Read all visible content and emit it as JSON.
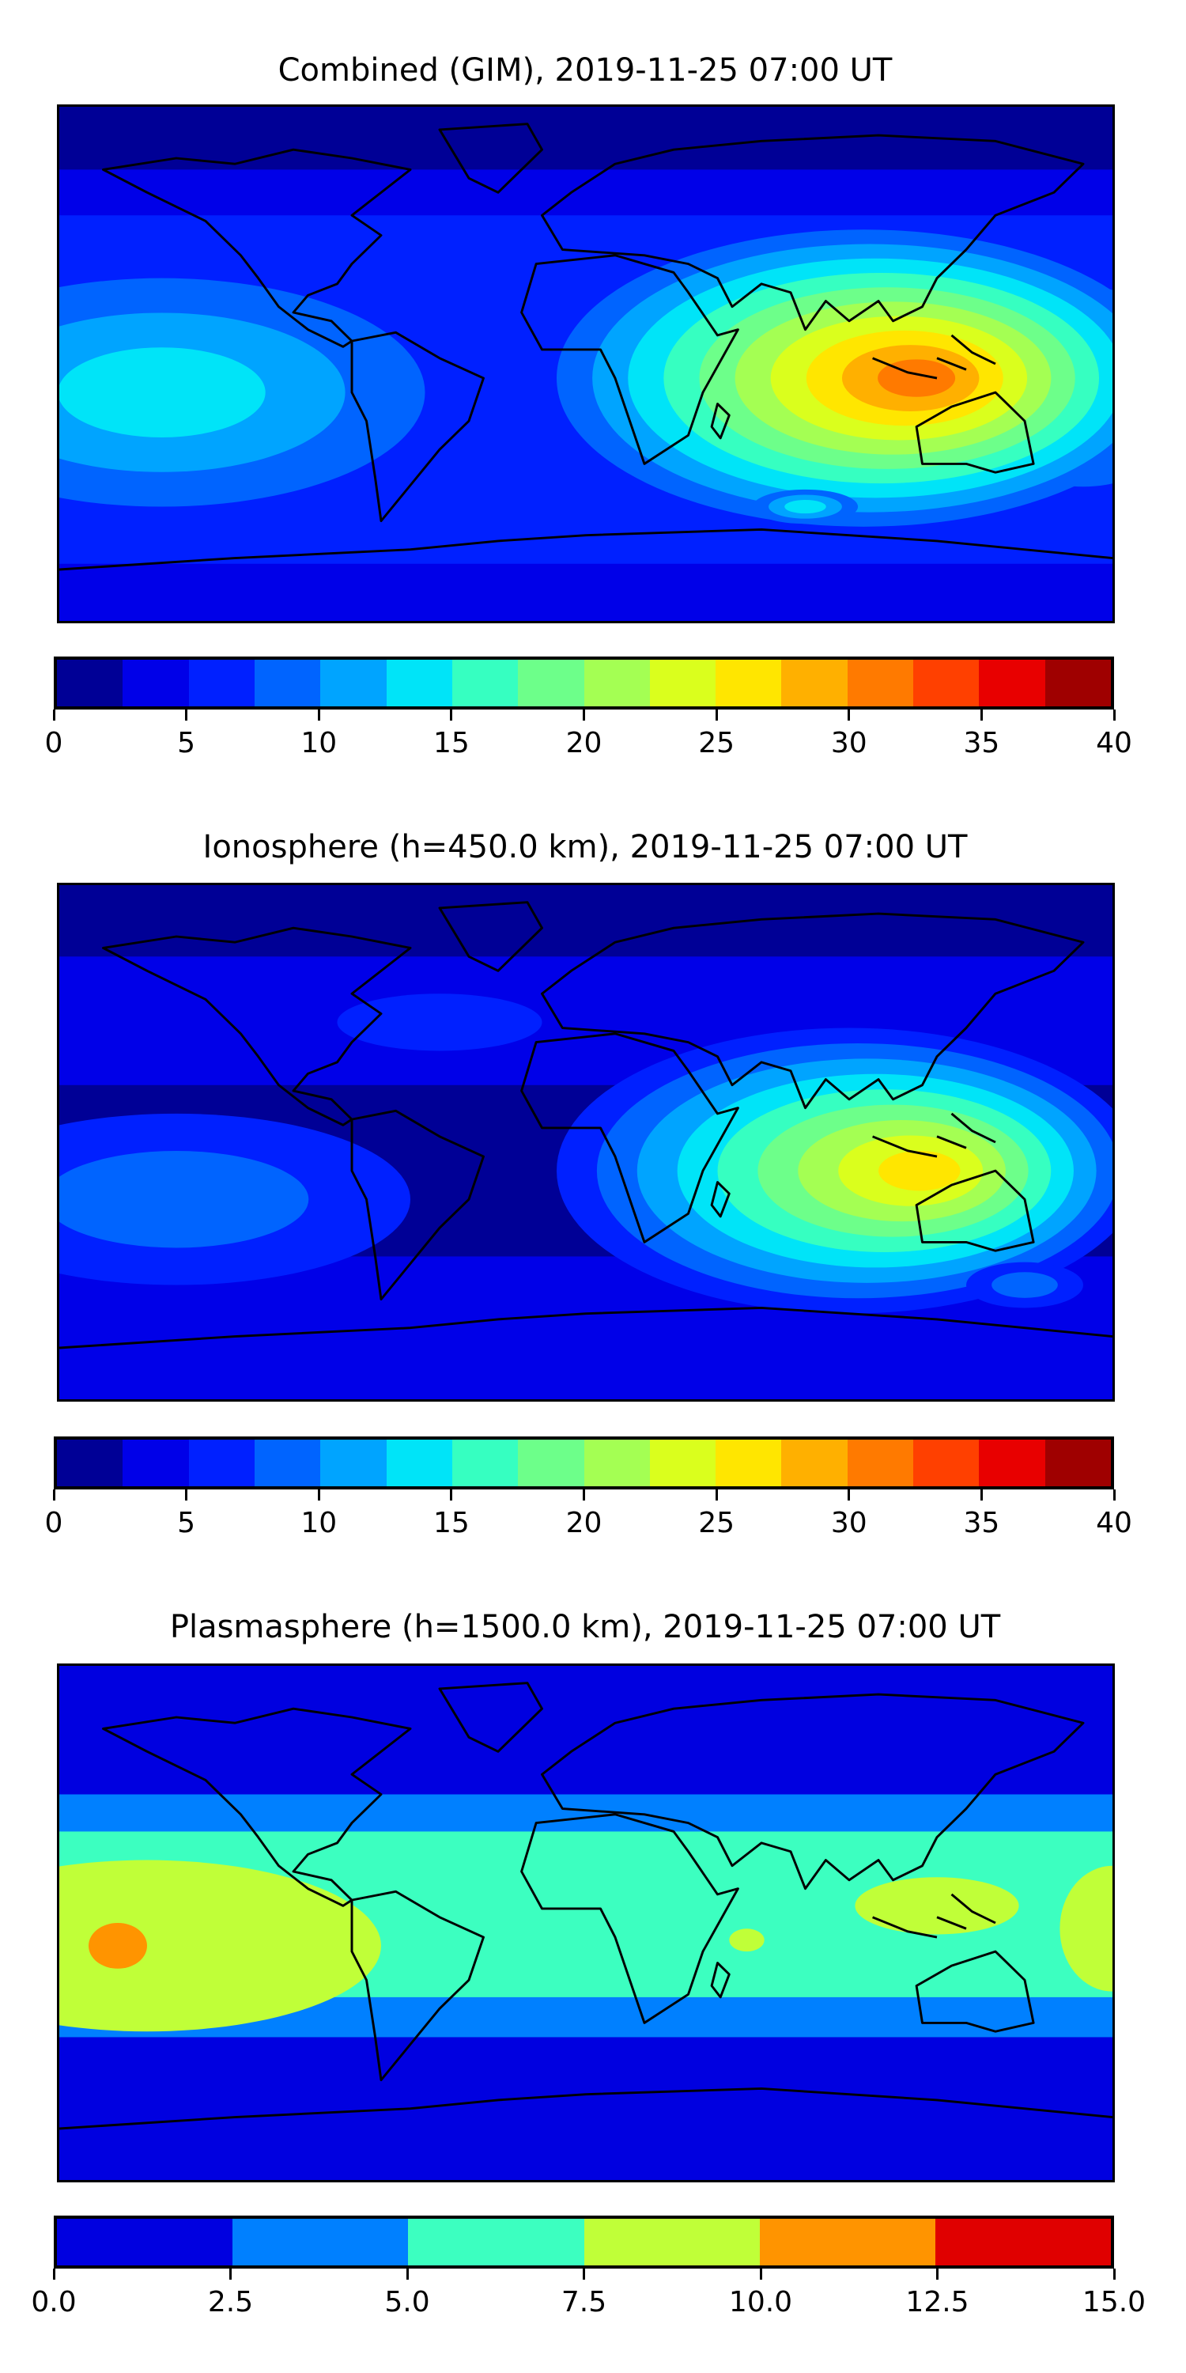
{
  "panels": [
    {
      "title": "Combined (GIM), 2019-11-25 07:00 UT",
      "ticks": [
        "0",
        "5",
        "10",
        "15",
        "20",
        "25",
        "30",
        "35",
        "40"
      ],
      "levels": [
        "#000096",
        "#0000e8",
        "#0020ff",
        "#0064ff",
        "#00a4ff",
        "#00e4f8",
        "#36ffc1",
        "#6dff8a",
        "#a4ff53",
        "#daff1d",
        "#ffe600",
        "#ffb000",
        "#ff7a00",
        "#ff4000",
        "#e80000",
        "#9f0000"
      ]
    },
    {
      "title": "Ionosphere  (h=450.0 km), 2019-11-25 07:00 UT",
      "ticks": [
        "0",
        "5",
        "10",
        "15",
        "20",
        "25",
        "30",
        "35",
        "40"
      ],
      "levels": [
        "#000096",
        "#0000e8",
        "#0020ff",
        "#0064ff",
        "#00a4ff",
        "#00e4f8",
        "#36ffc1",
        "#6dff8a",
        "#a4ff53",
        "#daff1d",
        "#ffe600",
        "#ffb000",
        "#ff7a00",
        "#ff4000",
        "#e80000",
        "#9f0000"
      ]
    },
    {
      "title": "Plasmasphere (h=1500.0 km), 2019-11-25 07:00 UT",
      "ticks": [
        "0.0",
        "2.5",
        "5.0",
        "7.5",
        "10.0",
        "12.5",
        "15.0"
      ],
      "levels": [
        "#0000e0",
        "#0080ff",
        "#3cffc0",
        "#c0ff38",
        "#ff9400",
        "#e00000"
      ]
    }
  ],
  "chart_data": [
    {
      "type": "heatmap",
      "title": "Combined (GIM), 2019-11-25 07:00 UT",
      "colorbar_range": [
        0,
        40
      ],
      "colorbar_step": 2.5,
      "max_region": "Indonesia / Indian Ocean ~30-32.5",
      "min_region": "polar regions 0-2.5"
    },
    {
      "type": "heatmap",
      "title": "Ionosphere  (h=450.0 km), 2019-11-25 07:00 UT",
      "colorbar_range": [
        0,
        40
      ],
      "colorbar_step": 2.5,
      "max_region": "Indonesia ~25-27.5",
      "min_region": "Americas/polar 0-2.5"
    },
    {
      "type": "heatmap",
      "title": "Plasmasphere (h=1500.0 km), 2019-11-25 07:00 UT",
      "colorbar_range": [
        0,
        15
      ],
      "colorbar_step": 2.5,
      "max_region": "central Pacific ~10-12.5",
      "min_region": "high latitudes 0-2.5"
    }
  ]
}
